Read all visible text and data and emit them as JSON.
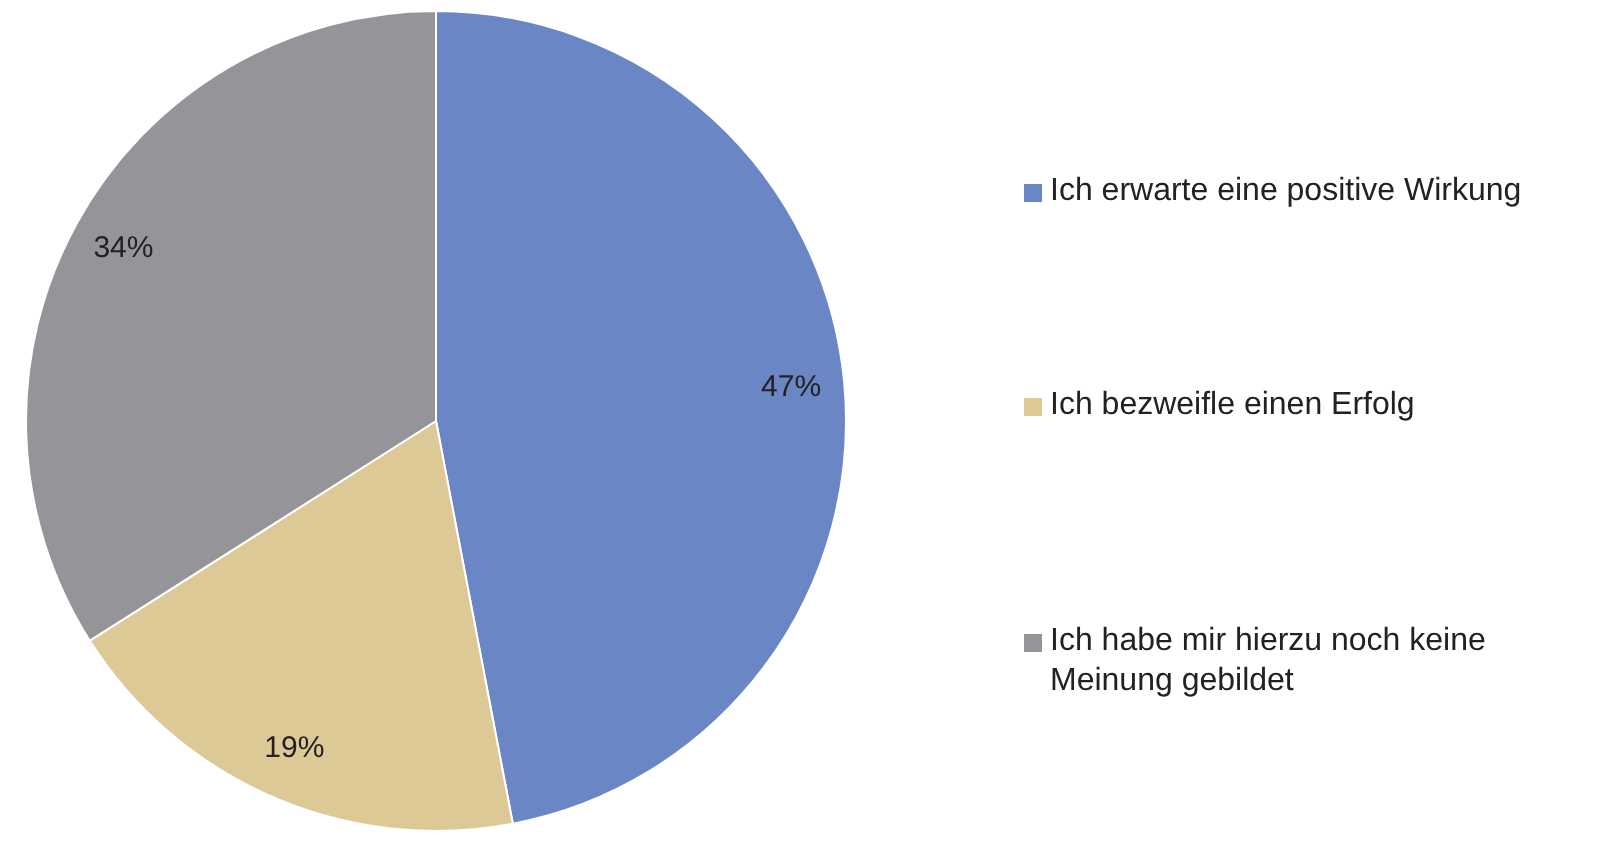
{
  "chart_data": {
    "type": "pie",
    "categories": [
      "Ich erwarte eine positive Wirkung",
      "Ich bezweifle einen Erfolg",
      "Ich habe mir hierzu noch keine Meinung gebildet"
    ],
    "values": [
      47,
      19,
      34
    ],
    "colors": [
      "#6a86c4",
      "#dcc995",
      "#959499"
    ],
    "value_labels": [
      "47%",
      "19%",
      "34%"
    ],
    "legend": "right"
  }
}
